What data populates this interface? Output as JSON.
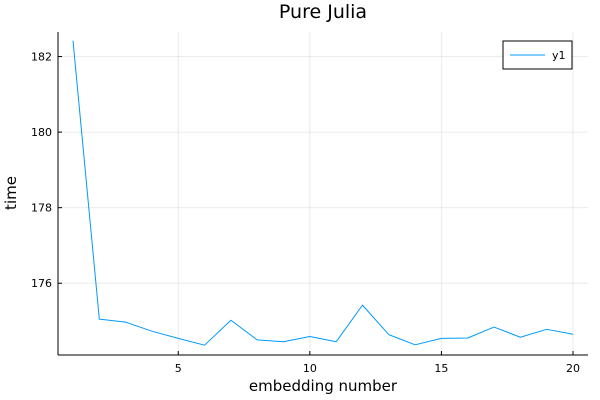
{
  "chart_data": {
    "type": "line",
    "title": "Pure Julia",
    "xlabel": "embedding number",
    "ylabel": "time",
    "xlim": [
      0.43,
      20.57
    ],
    "ylim": [
      174.1,
      182.65
    ],
    "xticks": [
      5,
      10,
      15,
      20
    ],
    "yticks": [
      176,
      178,
      180,
      182
    ],
    "grid": true,
    "legend_position": "top-right",
    "series": [
      {
        "name": "y1",
        "color": "#009af9",
        "x": [
          1,
          2,
          3,
          4,
          5,
          6,
          7,
          8,
          9,
          10,
          11,
          12,
          13,
          14,
          15,
          16,
          17,
          18,
          19,
          20
        ],
        "y": [
          182.42,
          175.05,
          174.97,
          174.73,
          174.54,
          174.36,
          175.02,
          174.5,
          174.45,
          174.59,
          174.45,
          175.42,
          174.64,
          174.37,
          174.54,
          174.55,
          174.84,
          174.57,
          174.78,
          174.65
        ]
      }
    ]
  }
}
